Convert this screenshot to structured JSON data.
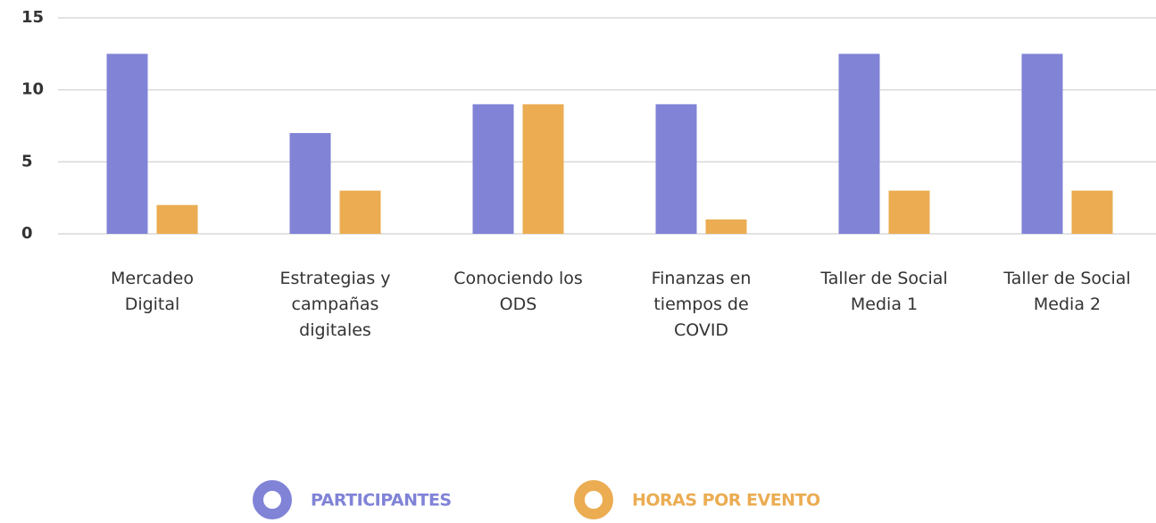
{
  "chart_data": {
    "type": "bar",
    "categories": [
      "Mercadeo Digital",
      "Estrategias y campañas digitales",
      "Conociendo los ODS",
      "Finanzas en tiempos de COVID",
      "Taller de Social Media 1",
      "Taller de Social Media 2"
    ],
    "series": [
      {
        "name": "PARTICIPANTES",
        "color": "#8083d6",
        "values": [
          12.5,
          7,
          9,
          9,
          12.5,
          12.5
        ]
      },
      {
        "name": "HORAS POR EVENTO",
        "color": "#ebac52",
        "values": [
          2,
          3,
          9,
          1,
          3,
          3
        ]
      }
    ],
    "ylim": [
      0,
      15
    ],
    "yticks": [
      0,
      5,
      10,
      15
    ],
    "grid": true
  }
}
